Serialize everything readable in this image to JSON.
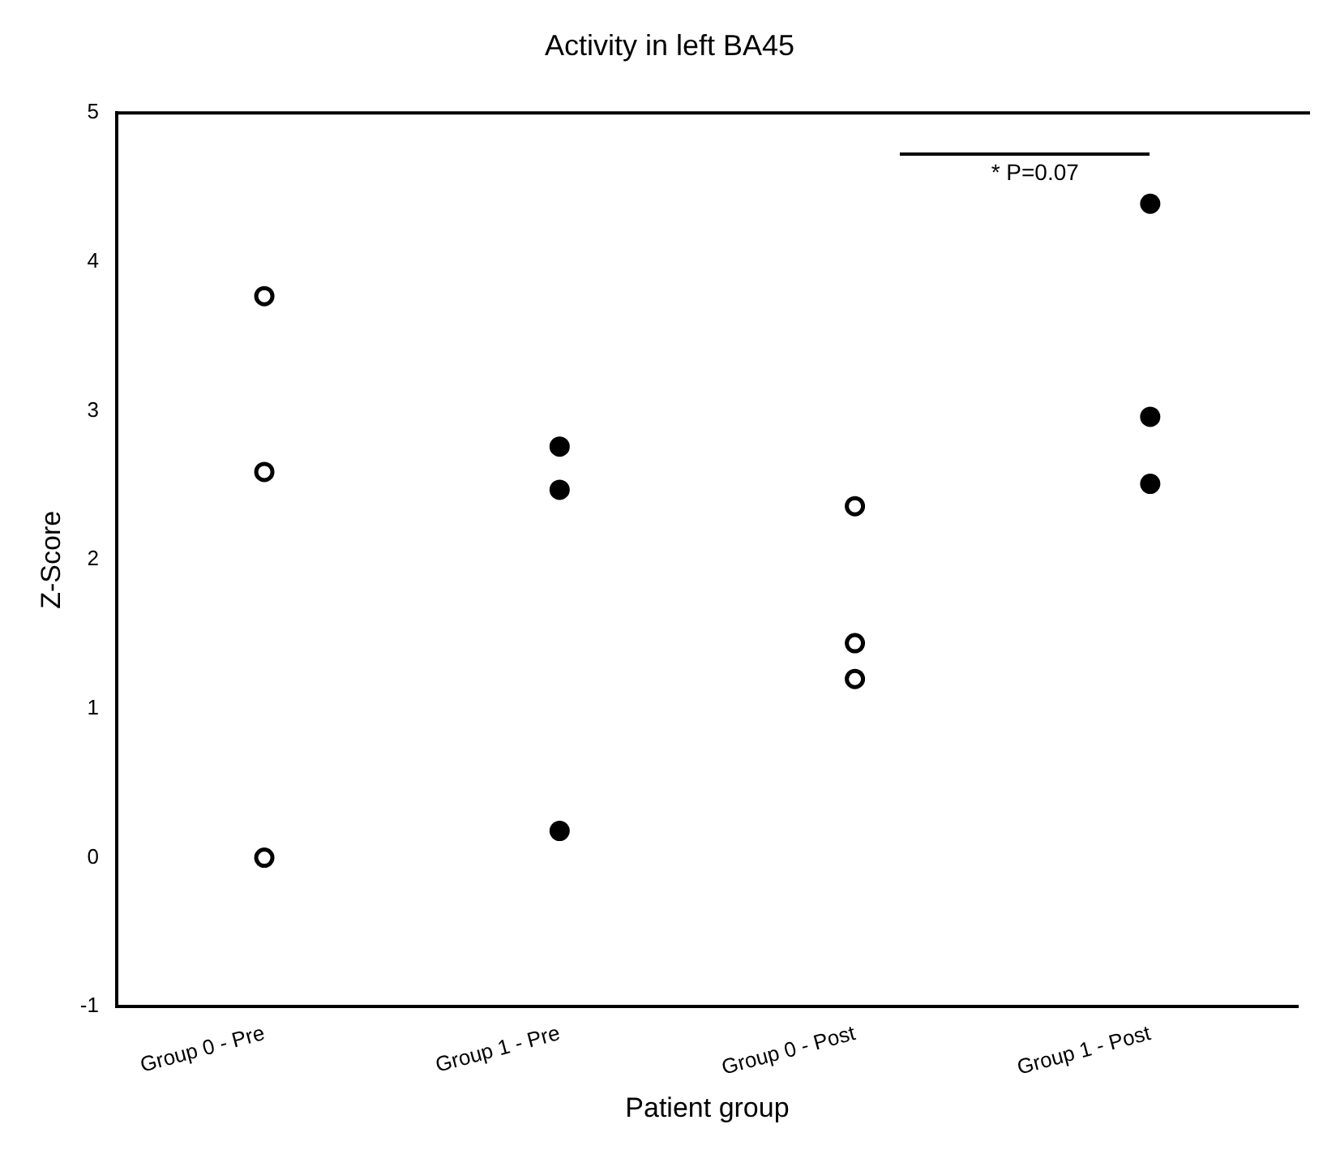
{
  "chart_data": {
    "type": "scatter",
    "title": "Activity in left BA45",
    "xlabel": "Patient group",
    "ylabel": "Z-Score",
    "categories": [
      "Group 0 - Pre",
      "Group 1 - Pre",
      "Group 0 - Post",
      "Group 1 - Post"
    ],
    "series": [
      {
        "color": "#ffffff",
        "x": [
          "Group 0 - Pre",
          "Group 0 - Pre",
          "Group 0 - Pre",
          "Group 0 - Post",
          "Group 0 - Post",
          "Group 0 - Post"
        ],
        "values": [
          3.77,
          2.59,
          0.0,
          2.36,
          1.44,
          1.2
        ]
      },
      {
        "color": "#000000",
        "x": [
          "Group 1 - Pre",
          "Group 1 - Pre",
          "Group 1 - Pre",
          "Group 1 - Post",
          "Group 1 - Post",
          "Group 1 - Post"
        ],
        "values": [
          2.76,
          2.47,
          0.18,
          4.39,
          2.96,
          2.51
        ]
      }
    ],
    "marker": "circle",
    "grid": false,
    "legend": false,
    "ylim": [
      -1,
      5
    ],
    "yticks": [
      -1,
      0,
      1,
      2,
      3,
      4,
      5
    ],
    "annotations": [
      "* P=0.07"
    ]
  }
}
